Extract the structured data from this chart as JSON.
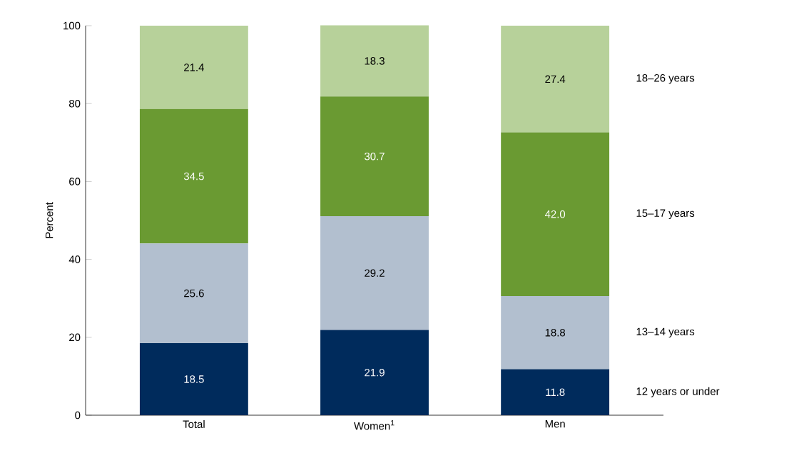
{
  "chart_data": {
    "type": "bar",
    "stacked": true,
    "ylabel": "Percent",
    "categories": [
      "Total",
      "Women$^{1}$",
      "Men"
    ],
    "series": [
      {
        "name": "12 years or under",
        "color": "#002b5c",
        "values": [
          18.5,
          21.9,
          11.8
        ],
        "value_labels": [
          "18.5",
          "21.9",
          "11.8"
        ]
      },
      {
        "name": "13–14 years",
        "color": "#b2bfcf",
        "values": [
          25.6,
          29.2,
          18.8
        ],
        "value_labels": [
          "25.6",
          "29.2",
          "18.8"
        ]
      },
      {
        "name": "15–17 years",
        "color": "#6a9a32",
        "values": [
          34.5,
          30.7,
          42.0
        ],
        "value_labels": [
          "34.5",
          "30.7",
          "42.0"
        ]
      },
      {
        "name": "18–26 years",
        "color": "#b7d19a",
        "values": [
          21.4,
          18.3,
          27.4
        ],
        "value_labels": [
          "21.4",
          "18.3",
          "27.4"
        ]
      }
    ],
    "ylim": [
      0,
      100
    ],
    "yticks": [
      0,
      20,
      40,
      60,
      80,
      100
    ],
    "grid": false
  }
}
